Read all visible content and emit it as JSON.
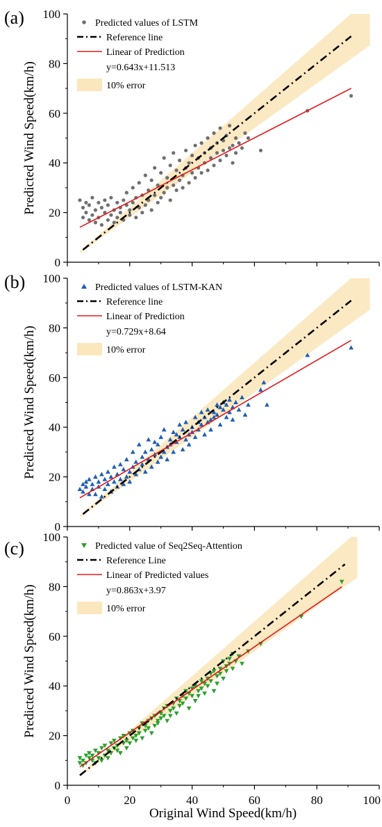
{
  "figure": {
    "xlabel": "Original Wind Speed(km/h)"
  },
  "chart_data": [
    {
      "panel_label": "(a)",
      "type": "scatter",
      "ylabel": "Predicted Wind Speed(km/h)",
      "xlim": [
        0,
        100
      ],
      "ylim": [
        0,
        100
      ],
      "xticks": [
        "0",
        "20",
        "40",
        "60",
        "80",
        "100"
      ],
      "yticks": [
        "0",
        "20",
        "40",
        "60",
        "80",
        "100"
      ],
      "x_tick_labels_shown": false,
      "marker": "circle",
      "colors": {
        "points": "#707070",
        "reference": "#000000",
        "fit": "#e31a1c",
        "band": "#fbe7bd"
      },
      "legend": {
        "points": "Predicted values of LSTM",
        "reference": "Reference line",
        "fit": "Linear of Prediction",
        "equation": "y=0.643x+11.513",
        "band": "10% error"
      },
      "reference_line": {
        "slope": 1,
        "intercept": 0,
        "x_range": [
          5,
          91
        ]
      },
      "fit_line": {
        "slope": 0.643,
        "intercept": 11.513,
        "x_range": [
          4,
          91
        ]
      },
      "error_band": {
        "percent": 10,
        "x_range": [
          4,
          97
        ]
      },
      "series": [
        {
          "name": "Predicted values of LSTM",
          "x": [
            4,
            5,
            5,
            6,
            6,
            7,
            7,
            8,
            8,
            9,
            9,
            10,
            10,
            11,
            11,
            12,
            12,
            13,
            13,
            14,
            14,
            15,
            15,
            16,
            16,
            17,
            17,
            18,
            18,
            19,
            19,
            20,
            20,
            21,
            21,
            22,
            22,
            23,
            23,
            24,
            24,
            25,
            25,
            26,
            26,
            27,
            27,
            28,
            28,
            29,
            29,
            30,
            30,
            31,
            31,
            32,
            32,
            33,
            33,
            34,
            34,
            35,
            35,
            36,
            36,
            37,
            37,
            38,
            38,
            39,
            39,
            40,
            40,
            41,
            41,
            42,
            42,
            43,
            43,
            44,
            44,
            45,
            45,
            46,
            46,
            47,
            47,
            48,
            48,
            49,
            49,
            50,
            50,
            51,
            51,
            52,
            52,
            53,
            53,
            54,
            54,
            55,
            56,
            57,
            58,
            62,
            77,
            91
          ],
          "y": [
            25,
            18,
            22,
            20,
            24,
            17,
            23,
            19,
            26,
            21,
            16,
            24,
            18,
            22,
            15,
            25,
            20,
            17,
            23,
            19,
            26,
            21,
            16,
            24,
            18,
            22,
            20,
            25,
            17,
            23,
            28,
            19,
            21,
            24,
            30,
            18,
            26,
            22,
            32,
            20,
            27,
            23,
            35,
            25,
            29,
            21,
            33,
            27,
            38,
            24,
            31,
            26,
            36,
            28,
            42,
            30,
            34,
            25,
            39,
            31,
            44,
            29,
            37,
            33,
            41,
            35,
            30,
            38,
            45,
            32,
            40,
            36,
            43,
            34,
            47,
            38,
            42,
            36,
            48,
            40,
            44,
            37,
            50,
            42,
            46,
            39,
            52,
            44,
            48,
            41,
            54,
            45,
            49,
            43,
            51,
            46,
            55,
            47,
            40,
            50,
            44,
            48,
            46,
            52,
            50,
            45,
            61,
            67
          ]
        }
      ]
    },
    {
      "panel_label": "(b)",
      "type": "scatter",
      "ylabel": "Predicted Wind Speed(km/h)",
      "xlim": [
        0,
        100
      ],
      "ylim": [
        0,
        100
      ],
      "xticks": [
        "0",
        "20",
        "40",
        "60",
        "80",
        "100"
      ],
      "yticks": [
        "0",
        "20",
        "40",
        "60",
        "80",
        "100"
      ],
      "x_tick_labels_shown": false,
      "marker": "triangle-up",
      "colors": {
        "points": "#1f5fb4",
        "reference": "#000000",
        "fit": "#e31a1c",
        "band": "#fbe7bd"
      },
      "legend": {
        "points": "Predicted values of LSTM-KAN",
        "reference": "Reference line",
        "fit": "Linear of Prediction",
        "equation": "y=0.729x+8.64",
        "band": "10% error"
      },
      "reference_line": {
        "slope": 1,
        "intercept": 0,
        "x_range": [
          5,
          91
        ]
      },
      "fit_line": {
        "slope": 0.729,
        "intercept": 8.64,
        "x_range": [
          4,
          91
        ]
      },
      "error_band": {
        "percent": 10,
        "x_range": [
          4,
          97
        ]
      },
      "series": [
        {
          "name": "Predicted values of LSTM-KAN",
          "x": [
            4,
            5,
            5,
            6,
            6,
            7,
            7,
            8,
            8,
            9,
            9,
            10,
            10,
            11,
            11,
            12,
            12,
            13,
            13,
            14,
            14,
            15,
            15,
            16,
            16,
            17,
            17,
            18,
            18,
            19,
            19,
            20,
            20,
            21,
            21,
            22,
            22,
            23,
            23,
            24,
            24,
            25,
            25,
            26,
            26,
            27,
            27,
            28,
            28,
            29,
            29,
            30,
            30,
            31,
            31,
            32,
            32,
            33,
            33,
            34,
            34,
            35,
            35,
            36,
            36,
            37,
            37,
            38,
            38,
            39,
            39,
            40,
            40,
            41,
            41,
            42,
            42,
            43,
            43,
            44,
            44,
            45,
            45,
            46,
            46,
            47,
            47,
            48,
            48,
            49,
            49,
            50,
            50,
            51,
            51,
            52,
            52,
            53,
            53,
            54,
            55,
            56,
            57,
            58,
            62,
            63,
            64,
            77,
            91
          ],
          "y": [
            15,
            17,
            14,
            18,
            16,
            13,
            19,
            17,
            15,
            20,
            13,
            18,
            16,
            21,
            12,
            19,
            15,
            22,
            17,
            14,
            20,
            18,
            24,
            16,
            21,
            19,
            25,
            17,
            23,
            20,
            27,
            22,
            18,
            24,
            30,
            21,
            26,
            23,
            33,
            25,
            28,
            22,
            30,
            27,
            35,
            24,
            31,
            29,
            34,
            26,
            33,
            28,
            36,
            30,
            39,
            32,
            27,
            35,
            33,
            38,
            30,
            37,
            34,
            41,
            36,
            31,
            39,
            35,
            42,
            37,
            33,
            40,
            38,
            44,
            36,
            42,
            39,
            46,
            41,
            37,
            44,
            42,
            47,
            43,
            39,
            46,
            44,
            49,
            45,
            41,
            48,
            47,
            50,
            44,
            49,
            46,
            51,
            48,
            43,
            50,
            47,
            52,
            45,
            49,
            55,
            58,
            49,
            69,
            72
          ]
        }
      ]
    },
    {
      "panel_label": "(c)",
      "type": "scatter",
      "ylabel": "Predicted Wind Speed(km/h)",
      "xlim": [
        0,
        100
      ],
      "ylim": [
        0,
        100
      ],
      "xticks": [
        "0",
        "20",
        "40",
        "60",
        "80",
        "100"
      ],
      "yticks": [
        "0",
        "20",
        "40",
        "60",
        "80",
        "100"
      ],
      "x_tick_labels_shown": true,
      "marker": "triangle-down",
      "colors": {
        "points": "#2ca02c",
        "reference": "#000000",
        "fit": "#e31a1c",
        "band": "#fbe7bd"
      },
      "legend": {
        "points": "Predicted value of Seq2Seq-Attention",
        "reference": "Reference Line",
        "fit": "Linear of Predicted values",
        "equation": "y=0.863x+3.97",
        "band": "10% error"
      },
      "reference_line": {
        "slope": 1,
        "intercept": 0,
        "x_range": [
          4,
          89
        ]
      },
      "fit_line": {
        "slope": 0.863,
        "intercept": 3.97,
        "x_range": [
          4,
          88
        ]
      },
      "error_band": {
        "percent": 10,
        "x_range": [
          4,
          93
        ]
      },
      "series": [
        {
          "name": "Predicted value of Seq2Seq-Attention",
          "x": [
            4,
            4,
            5,
            5,
            6,
            6,
            7,
            7,
            8,
            8,
            9,
            9,
            10,
            10,
            11,
            11,
            12,
            12,
            13,
            13,
            14,
            14,
            15,
            15,
            16,
            16,
            17,
            17,
            18,
            18,
            19,
            19,
            20,
            20,
            21,
            21,
            22,
            22,
            23,
            23,
            24,
            24,
            25,
            25,
            26,
            26,
            27,
            27,
            28,
            28,
            29,
            29,
            30,
            30,
            31,
            31,
            32,
            32,
            33,
            33,
            34,
            34,
            35,
            35,
            36,
            36,
            37,
            37,
            38,
            38,
            39,
            39,
            40,
            40,
            41,
            41,
            42,
            42,
            43,
            43,
            44,
            44,
            45,
            45,
            46,
            46,
            47,
            47,
            48,
            48,
            49,
            49,
            50,
            50,
            51,
            51,
            52,
            52,
            53,
            53,
            54,
            55,
            56,
            58,
            62,
            75,
            88
          ],
          "y": [
            9,
            11,
            10,
            8,
            12,
            9,
            11,
            13,
            10,
            12,
            9,
            14,
            11,
            13,
            15,
            10,
            12,
            16,
            14,
            11,
            17,
            13,
            15,
            18,
            14,
            16,
            19,
            13,
            17,
            20,
            15,
            18,
            21,
            17,
            19,
            22,
            20,
            18,
            23,
            21,
            25,
            19,
            24,
            22,
            26,
            23,
            21,
            27,
            24,
            28,
            26,
            25,
            29,
            27,
            31,
            28,
            26,
            32,
            30,
            28,
            33,
            31,
            35,
            29,
            34,
            32,
            36,
            33,
            38,
            35,
            31,
            37,
            36,
            39,
            34,
            40,
            38,
            36,
            42,
            39,
            41,
            37,
            43,
            40,
            45,
            42,
            38,
            46,
            44,
            41,
            47,
            45,
            50,
            43,
            48,
            46,
            51,
            49,
            47,
            53,
            50,
            52,
            49,
            54,
            57,
            68,
            82
          ]
        }
      ]
    }
  ]
}
